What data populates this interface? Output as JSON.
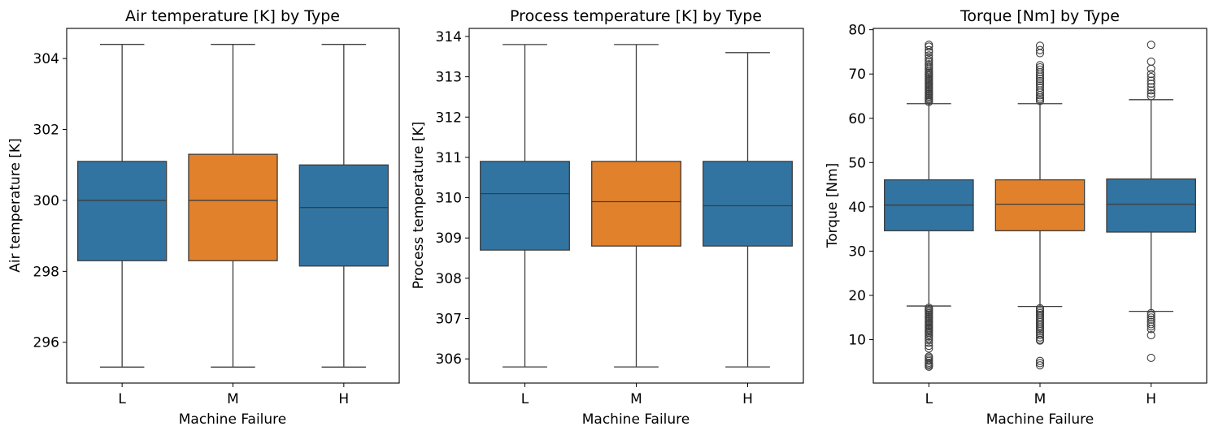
{
  "colors": {
    "primary": "#3274a1",
    "highlight": "#e1812c",
    "line": "#3d3d3d",
    "frame": "#000000"
  },
  "chart_data": [
    {
      "type": "box",
      "title": "Air temperature [K] by Type",
      "xlabel": "Machine Failure",
      "ylabel": "Air temperature [K]",
      "categories": [
        "L",
        "M",
        "H"
      ],
      "yticks": [
        296,
        298,
        300,
        302,
        304
      ],
      "ylim": [
        294.85,
        304.85
      ],
      "boxes": [
        {
          "category": "L",
          "whisker_low": 295.3,
          "q1": 298.3,
          "median": 300.0,
          "q3": 301.1,
          "whisker_high": 304.4,
          "outliers": []
        },
        {
          "category": "M",
          "whisker_low": 295.3,
          "q1": 298.3,
          "median": 300.0,
          "q3": 301.3,
          "whisker_high": 304.4,
          "outliers": []
        },
        {
          "category": "H",
          "whisker_low": 295.3,
          "q1": 298.15,
          "median": 299.8,
          "q3": 301.0,
          "whisker_high": 304.4,
          "outliers": []
        }
      ]
    },
    {
      "type": "box",
      "title": "Process temperature [K] by Type",
      "xlabel": "Machine Failure",
      "ylabel": "Process temperature [K]",
      "categories": [
        "L",
        "M",
        "H"
      ],
      "yticks": [
        306,
        307,
        308,
        309,
        310,
        311,
        312,
        313,
        314
      ],
      "ylim": [
        305.4,
        314.2
      ],
      "boxes": [
        {
          "category": "L",
          "whisker_low": 305.8,
          "q1": 308.7,
          "median": 310.1,
          "q3": 310.9,
          "whisker_high": 313.8,
          "outliers": []
        },
        {
          "category": "M",
          "whisker_low": 305.8,
          "q1": 308.8,
          "median": 309.9,
          "q3": 310.9,
          "whisker_high": 313.8,
          "outliers": []
        },
        {
          "category": "H",
          "whisker_low": 305.8,
          "q1": 308.8,
          "median": 309.8,
          "q3": 310.9,
          "whisker_high": 313.6,
          "outliers": []
        }
      ]
    },
    {
      "type": "box",
      "title": "Torque [Nm] by Type",
      "xlabel": "Machine Failure",
      "ylabel": "Torque [Nm]",
      "categories": [
        "L",
        "M",
        "H"
      ],
      "yticks": [
        10,
        20,
        30,
        40,
        50,
        60,
        70,
        80
      ],
      "ylim": [
        0.2,
        80.3
      ],
      "boxes": [
        {
          "category": "L",
          "whisker_low": 17.6,
          "q1": 34.6,
          "median": 40.4,
          "q3": 46.1,
          "whisker_high": 63.3,
          "outliers": [
            76.6,
            76.2,
            75.4,
            74.9,
            74.2,
            73.6,
            73.1,
            72.7,
            72.2,
            71.8,
            71.4,
            71.0,
            70.6,
            70.3,
            70.0,
            69.7,
            69.4,
            69.1,
            68.8,
            68.5,
            68.2,
            67.9,
            67.6,
            67.3,
            67.0,
            66.7,
            66.4,
            66.1,
            65.8,
            65.5,
            65.2,
            64.9,
            64.6,
            64.3,
            64.0,
            63.7,
            17.2,
            16.9,
            16.6,
            16.3,
            16.0,
            15.7,
            15.4,
            15.1,
            14.8,
            14.5,
            14.2,
            13.9,
            13.6,
            13.3,
            13.0,
            12.7,
            12.4,
            12.1,
            11.8,
            11.5,
            11.1,
            10.7,
            10.3,
            9.9,
            9.3,
            8.6,
            8.0,
            6.2,
            5.9,
            5.5,
            5.2,
            4.8,
            4.5,
            4.2,
            3.9
          ]
        },
        {
          "category": "M",
          "whisker_low": 17.5,
          "q1": 34.6,
          "median": 40.6,
          "q3": 46.1,
          "whisker_high": 63.3,
          "outliers": [
            76.4,
            75.4,
            74.7,
            72.0,
            71.5,
            71.0,
            70.4,
            69.9,
            69.4,
            68.9,
            68.4,
            67.9,
            67.4,
            66.9,
            66.3,
            65.8,
            65.2,
            64.7,
            64.3,
            63.9,
            17.1,
            16.8,
            16.4,
            16.0,
            15.6,
            15.2,
            14.8,
            14.4,
            14.0,
            13.6,
            13.2,
            12.8,
            12.4,
            12.0,
            11.5,
            11.0,
            10.5,
            10.0,
            9.8,
            5.2,
            4.7,
            4.2
          ]
        },
        {
          "category": "H",
          "whisker_low": 16.4,
          "q1": 34.3,
          "median": 40.6,
          "q3": 46.3,
          "whisker_high": 64.2,
          "outliers": [
            76.6,
            72.8,
            71.2,
            70.0,
            69.3,
            68.5,
            67.8,
            67.0,
            66.3,
            65.6,
            65.0,
            16.0,
            15.5,
            15.0,
            14.5,
            14.0,
            13.5,
            13.0,
            12.4,
            11.0,
            5.9
          ]
        }
      ]
    }
  ]
}
